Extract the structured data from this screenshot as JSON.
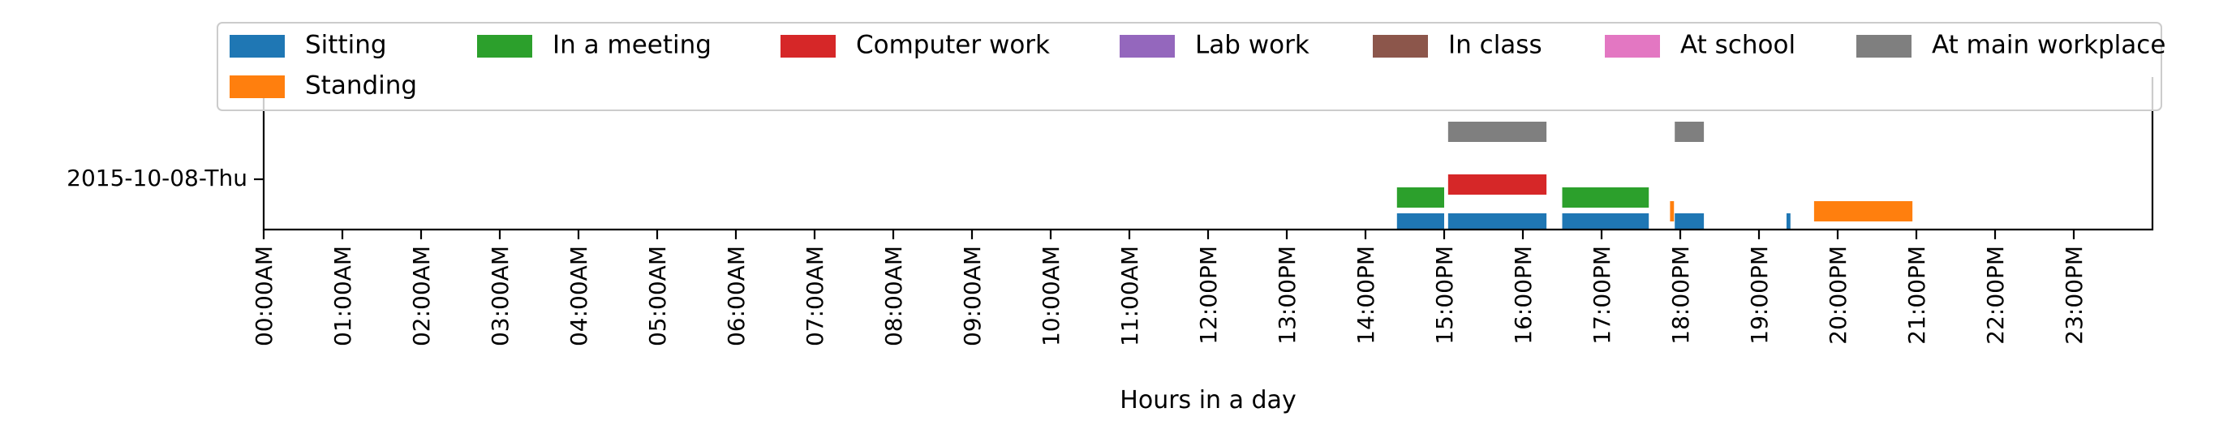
{
  "chart_data": {
    "type": "bar",
    "orientation": "horizontal-timeline",
    "title": "",
    "xlabel": "Hours in a day",
    "ylabel": "",
    "xlim": [
      0,
      24
    ],
    "y_category": "2015-10-08-Thu",
    "x_ticks": [
      {
        "value": 0,
        "label": "00:00AM"
      },
      {
        "value": 1,
        "label": "01:00AM"
      },
      {
        "value": 2,
        "label": "02:00AM"
      },
      {
        "value": 3,
        "label": "03:00AM"
      },
      {
        "value": 4,
        "label": "04:00AM"
      },
      {
        "value": 5,
        "label": "05:00AM"
      },
      {
        "value": 6,
        "label": "06:00AM"
      },
      {
        "value": 7,
        "label": "07:00AM"
      },
      {
        "value": 8,
        "label": "08:00AM"
      },
      {
        "value": 9,
        "label": "09:00AM"
      },
      {
        "value": 10,
        "label": "10:00AM"
      },
      {
        "value": 11,
        "label": "11:00AM"
      },
      {
        "value": 12,
        "label": "12:00PM"
      },
      {
        "value": 13,
        "label": "13:00PM"
      },
      {
        "value": 14,
        "label": "14:00PM"
      },
      {
        "value": 15,
        "label": "15:00PM"
      },
      {
        "value": 16,
        "label": "16:00PM"
      },
      {
        "value": 17,
        "label": "17:00PM"
      },
      {
        "value": 18,
        "label": "18:00PM"
      },
      {
        "value": 19,
        "label": "19:00PM"
      },
      {
        "value": 20,
        "label": "20:00PM"
      },
      {
        "value": 21,
        "label": "21:00PM"
      },
      {
        "value": 22,
        "label": "22:00PM"
      },
      {
        "value": 23,
        "label": "23:00PM"
      }
    ],
    "legend_position": "top",
    "grid": false,
    "series": [
      {
        "name": "Sitting",
        "color": "#1f77b4",
        "segments": [
          [
            14.4,
            15.0
          ],
          [
            15.05,
            16.3
          ],
          [
            16.5,
            17.6
          ],
          [
            17.93,
            18.3
          ],
          [
            19.35,
            19.4
          ]
        ]
      },
      {
        "name": "Standing",
        "color": "#ff7f0e",
        "segments": [
          [
            17.87,
            17.92
          ],
          [
            19.7,
            20.95
          ]
        ]
      },
      {
        "name": "In a meeting",
        "color": "#2ca02c",
        "segments": [
          [
            14.4,
            15.0
          ],
          [
            16.5,
            17.6
          ]
        ]
      },
      {
        "name": "Computer work",
        "color": "#d62728",
        "segments": [
          [
            15.05,
            16.3
          ]
        ]
      },
      {
        "name": "Lab work",
        "color": "#9467bd",
        "segments": []
      },
      {
        "name": "In class",
        "color": "#8c564b",
        "segments": []
      },
      {
        "name": "At school",
        "color": "#e377c2",
        "segments": []
      },
      {
        "name": "At main workplace",
        "color": "#7f7f7f",
        "segments": [
          [
            15.05,
            16.3
          ],
          [
            17.93,
            18.3
          ]
        ]
      }
    ]
  }
}
